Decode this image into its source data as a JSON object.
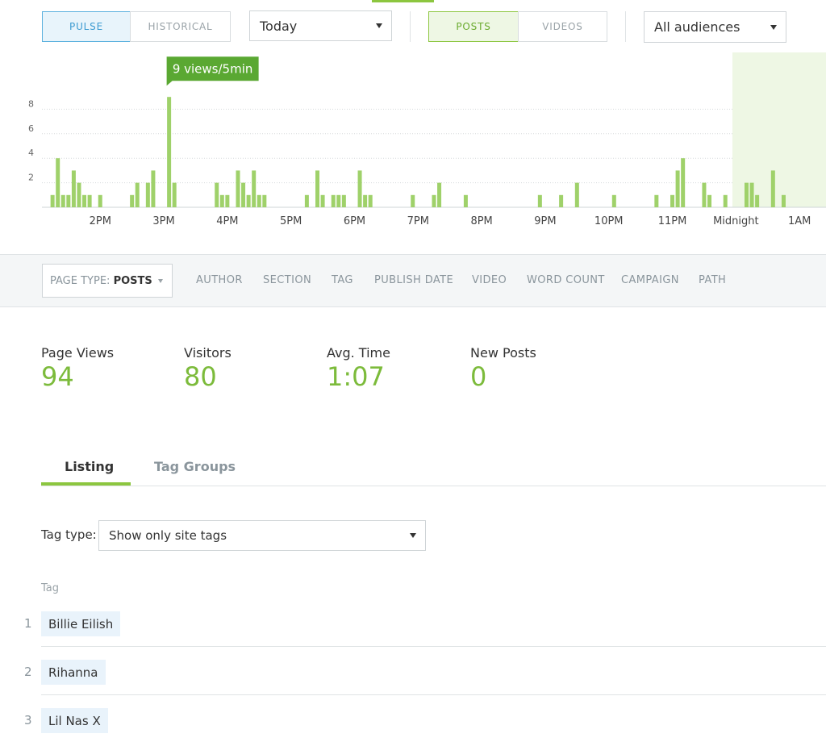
{
  "controls": {
    "mode": [
      "PULSE",
      "HISTORICAL"
    ],
    "date": "Today",
    "content": [
      "POSTS",
      "VIDEOS"
    ],
    "audience": "All audiences"
  },
  "chart_data": {
    "type": "bar",
    "color": "#9fd16a",
    "grid": true,
    "annotation": "9 views/5min",
    "x": [
      795,
      800,
      805,
      810,
      815,
      820,
      825,
      830,
      840,
      870,
      875,
      885,
      890,
      905,
      910,
      950,
      955,
      960,
      970,
      975,
      980,
      985,
      990,
      995,
      1035,
      1045,
      1050,
      1060,
      1065,
      1070,
      1085,
      1090,
      1095,
      1135,
      1155,
      1160,
      1185,
      1255,
      1275,
      1290,
      1325,
      1365,
      1380,
      1385,
      1390,
      1410,
      1415,
      1430,
      1450,
      1455,
      1460,
      1475,
      1485
    ],
    "values": [
      1,
      4,
      1,
      1,
      3,
      2,
      1,
      1,
      1,
      1,
      2,
      2,
      3,
      9,
      2,
      2,
      1,
      1,
      3,
      2,
      1,
      3,
      1,
      1,
      1,
      3,
      1,
      1,
      1,
      1,
      3,
      1,
      1,
      1,
      1,
      2,
      1,
      1,
      1,
      2,
      1,
      1,
      1,
      3,
      4,
      2,
      1,
      1,
      2,
      2,
      1,
      3,
      1
    ],
    "xlim": [
      785,
      1525
    ],
    "xticks": [
      {
        "value": 840,
        "label": "2PM"
      },
      {
        "value": 900,
        "label": "3PM"
      },
      {
        "value": 960,
        "label": "4PM"
      },
      {
        "value": 1020,
        "label": "5PM"
      },
      {
        "value": 1080,
        "label": "6PM"
      },
      {
        "value": 1140,
        "label": "7PM"
      },
      {
        "value": 1200,
        "label": "8PM"
      },
      {
        "value": 1260,
        "label": "9PM"
      },
      {
        "value": 1320,
        "label": "10PM"
      },
      {
        "value": 1380,
        "label": "11PM"
      },
      {
        "value": 1440,
        "label": "Midnight"
      },
      {
        "value": 1500,
        "label": "1AM"
      }
    ],
    "ylim": [
      0,
      12.5
    ],
    "yticks": [
      2,
      4,
      6,
      8
    ]
  },
  "filters": {
    "page_type_label": "PAGE TYPE:",
    "page_type_value": "POSTS",
    "options": [
      "AUTHOR",
      "SECTION",
      "TAG",
      "PUBLISH DATE",
      "VIDEO",
      "WORD COUNT",
      "CAMPAIGN",
      "PATH"
    ]
  },
  "stats": [
    {
      "label": "Page Views",
      "value": 94
    },
    {
      "label": "Visitors",
      "value": 80
    },
    {
      "label": "Avg. Time",
      "value": "1:07"
    },
    {
      "label": "New Posts",
      "value": 0
    }
  ],
  "tabs": [
    "Listing",
    "Tag Groups"
  ],
  "tag_type": {
    "label": "Tag type:",
    "value": "Show only site tags"
  },
  "table": {
    "header": "Tag",
    "rows": [
      [
        1,
        "Billie Eilish"
      ],
      [
        2,
        "Rihanna"
      ],
      [
        3,
        "Lil Nas X"
      ]
    ]
  }
}
